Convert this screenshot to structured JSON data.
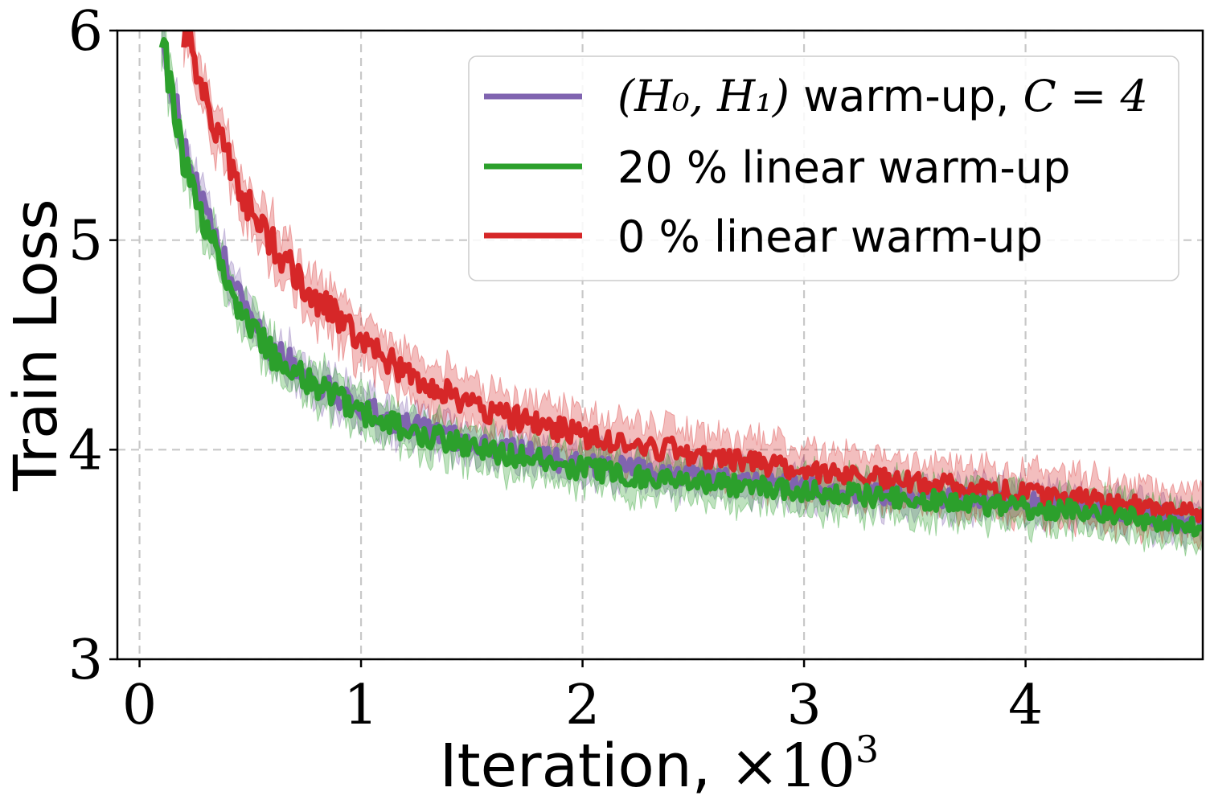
{
  "chart_data": {
    "type": "line",
    "title": "",
    "xlabel": "Iteration, ",
    "xlabel_math": "×10",
    "xlabel_exp": "3",
    "ylabel": "Train Loss",
    "xlim": [
      -0.1,
      4.8
    ],
    "ylim": [
      3,
      6
    ],
    "xticks": [
      0,
      1,
      2,
      3,
      4
    ],
    "xtick_labels": [
      "0",
      "1",
      "2",
      "3",
      "4"
    ],
    "yticks": [
      3,
      4,
      5,
      6
    ],
    "ytick_labels": [
      "3",
      "4",
      "5",
      "6"
    ],
    "grid": true,
    "legend_position": "top-right",
    "series": [
      {
        "name": "(H0, H1) warm-up, C = 4",
        "legend_math_prefix": "(H₀, H₁)",
        "legend_text": " warm-up, ",
        "legend_math_suffix": "C = 4",
        "color": "#8064b0",
        "x": [
          0.1,
          0.15,
          0.2,
          0.3,
          0.45,
          0.6,
          0.8,
          1.0,
          1.2,
          1.4,
          1.6,
          1.8,
          2.0,
          2.2,
          2.4,
          2.6,
          2.8,
          3.0,
          3.2,
          3.4,
          3.6,
          3.8,
          4.0,
          4.2,
          4.4,
          4.6,
          4.8
        ],
        "y": [
          6.0,
          5.7,
          5.45,
          5.1,
          4.72,
          4.48,
          4.32,
          4.2,
          4.12,
          4.06,
          4.01,
          3.97,
          3.93,
          3.91,
          3.88,
          3.86,
          3.84,
          3.82,
          3.8,
          3.79,
          3.77,
          3.76,
          3.75,
          3.73,
          3.72,
          3.68,
          3.64
        ],
        "band": 0.08
      },
      {
        "name": "20 % linear warm-up",
        "legend_text": "20 % linear warm-up",
        "color": "#2ca02c",
        "x": [
          0.1,
          0.15,
          0.2,
          0.3,
          0.45,
          0.6,
          0.8,
          1.0,
          1.2,
          1.4,
          1.6,
          1.8,
          2.0,
          2.2,
          2.4,
          2.6,
          2.8,
          3.0,
          3.2,
          3.4,
          3.6,
          3.8,
          4.0,
          4.2,
          4.4,
          4.6,
          4.8
        ],
        "y": [
          6.0,
          5.65,
          5.38,
          5.05,
          4.68,
          4.45,
          4.3,
          4.18,
          4.1,
          4.04,
          3.99,
          3.95,
          3.91,
          3.88,
          3.86,
          3.84,
          3.82,
          3.8,
          3.79,
          3.77,
          3.76,
          3.74,
          3.72,
          3.71,
          3.69,
          3.66,
          3.62
        ],
        "band": 0.09
      },
      {
        "name": "0 % linear warm-up",
        "legend_text": "0 % linear warm-up",
        "color": "#d62728",
        "x": [
          0.2,
          0.25,
          0.3,
          0.4,
          0.5,
          0.6,
          0.8,
          1.0,
          1.2,
          1.4,
          1.6,
          1.8,
          2.0,
          2.2,
          2.4,
          2.6,
          2.8,
          3.0,
          3.2,
          3.4,
          3.6,
          3.8,
          4.0,
          4.2,
          4.4,
          4.6,
          4.8
        ],
        "y": [
          6.0,
          5.85,
          5.65,
          5.4,
          5.15,
          4.98,
          4.72,
          4.52,
          4.37,
          4.26,
          4.18,
          4.12,
          4.07,
          4.03,
          4.0,
          3.96,
          3.93,
          3.9,
          3.88,
          3.86,
          3.84,
          3.82,
          3.79,
          3.77,
          3.75,
          3.72,
          3.69
        ],
        "band": 0.11
      }
    ]
  }
}
